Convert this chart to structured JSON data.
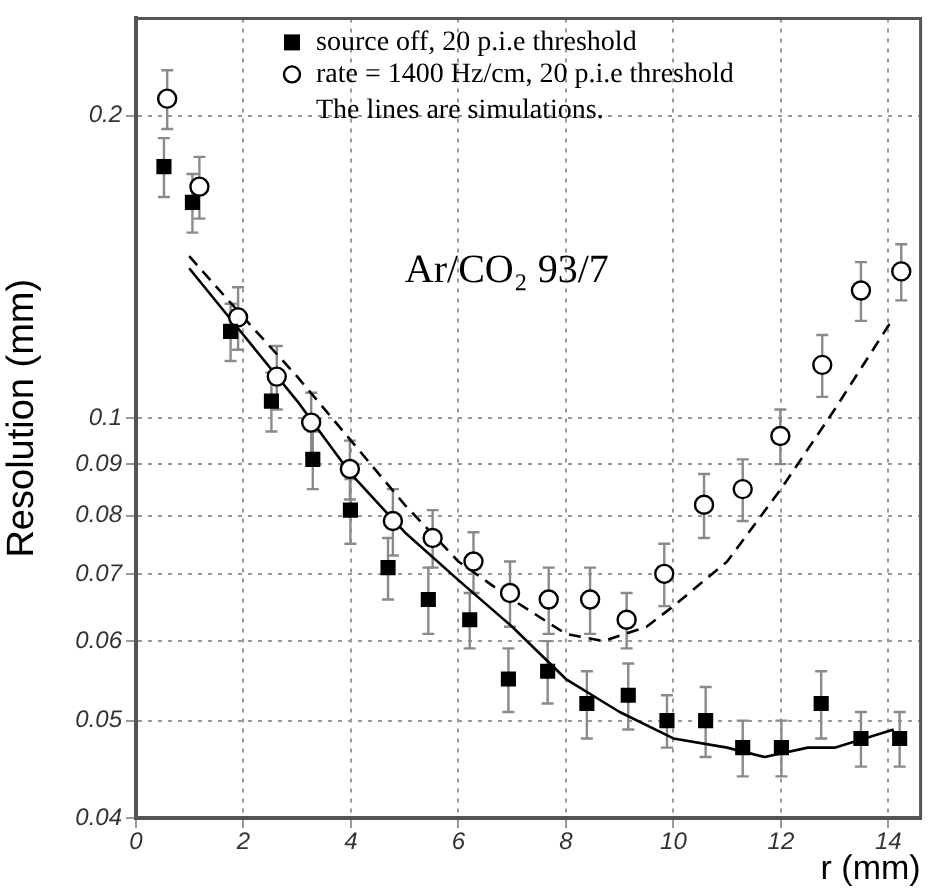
{
  "chart_data": {
    "type": "scatter",
    "xlabel": "r (mm)",
    "ylabel": "Resolution (mm)",
    "log": "y",
    "grid": true,
    "legend": "top left",
    "xlim": [
      0,
      14.6
    ],
    "xticks": [
      0,
      2,
      4,
      6,
      8,
      10,
      12,
      14
    ],
    "ylim": [
      0.04,
      0.25
    ],
    "yticks": [
      0.04,
      0.05,
      0.06,
      0.07,
      0.08,
      0.09,
      0.1,
      0.2
    ],
    "annotations": [
      "The lines are simulations.",
      "Ar/CO₂ 93/7"
    ],
    "series": [
      {
        "name": "source off, 20 p.i.e threshold",
        "marker": "square",
        "color": "#000000",
        "x": [
          0.52,
          1.05,
          1.76,
          2.52,
          3.29,
          3.99,
          4.69,
          5.44,
          6.21,
          6.93,
          7.66,
          8.39,
          9.16,
          9.88,
          10.6,
          11.29,
          12.01,
          12.75,
          13.49,
          14.21
        ],
        "values": [
          0.178,
          0.164,
          0.122,
          0.104,
          0.091,
          0.081,
          0.071,
          0.066,
          0.063,
          0.055,
          0.056,
          0.052,
          0.053,
          0.05,
          0.05,
          0.047,
          0.047,
          0.052,
          0.048,
          0.048
        ],
        "errors": [
          0.012,
          0.011,
          0.008,
          0.007,
          0.006,
          0.006,
          0.005,
          0.005,
          0.004,
          0.004,
          0.004,
          0.004,
          0.004,
          0.003,
          0.004,
          0.003,
          0.003,
          0.004,
          0.003,
          0.003
        ]
      },
      {
        "name": "rate = 1400 Hz/cm, 20 p.i.e threshold",
        "marker": "circle",
        "color": "#000000",
        "x": [
          0.58,
          1.18,
          1.9,
          2.62,
          3.26,
          3.98,
          4.78,
          5.52,
          6.28,
          6.96,
          7.68,
          8.45,
          9.13,
          9.83,
          10.57,
          11.29,
          11.99,
          12.77,
          13.49,
          14.24
        ],
        "values": [
          0.208,
          0.17,
          0.126,
          0.11,
          0.099,
          0.089,
          0.079,
          0.076,
          0.072,
          0.067,
          0.066,
          0.066,
          0.063,
          0.07,
          0.082,
          0.085,
          0.096,
          0.113,
          0.134,
          0.14
        ],
        "errors": [
          0.014,
          0.012,
          0.009,
          0.008,
          0.007,
          0.006,
          0.006,
          0.005,
          0.005,
          0.005,
          0.005,
          0.005,
          0.004,
          0.005,
          0.006,
          0.006,
          0.006,
          0.008,
          0.009,
          0.009
        ]
      },
      {
        "type": "line",
        "line_style": "solid",
        "color": "#000000",
        "x": [
          0.99,
          2,
          3,
          4,
          5,
          6,
          7,
          8,
          9,
          10,
          11,
          11.7,
          12.5,
          13,
          14.1
        ],
        "values": [
          0.141,
          0.121,
          0.104,
          0.088,
          0.077,
          0.069,
          0.062,
          0.055,
          0.051,
          0.048,
          0.047,
          0.046,
          0.047,
          0.047,
          0.049
        ]
      },
      {
        "type": "line",
        "line_style": "dashed",
        "color": "#000000",
        "x": [
          0.99,
          2,
          3,
          4,
          5,
          6,
          7,
          8,
          8.7,
          9.5,
          10,
          11,
          12,
          13,
          14.1
        ],
        "values": [
          0.145,
          0.126,
          0.11,
          0.095,
          0.082,
          0.072,
          0.066,
          0.061,
          0.06,
          0.062,
          0.065,
          0.072,
          0.085,
          0.102,
          0.126
        ]
      }
    ]
  }
}
